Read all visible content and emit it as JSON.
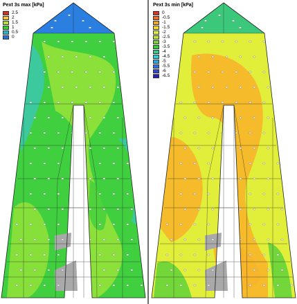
{
  "left_panel": {
    "title": "Pext 3s max [kPa]",
    "legend": [
      {
        "label": "2.5",
        "color": "#d7301f"
      },
      {
        "label": "2",
        "color": "#f5c141"
      },
      {
        "label": "1.5",
        "color": "#b7e034"
      },
      {
        "label": "1",
        "color": "#33cc33"
      },
      {
        "label": "0.5",
        "color": "#22b8cc"
      },
      {
        "label": "0",
        "color": "#2b6fd6"
      }
    ],
    "colors": {
      "base": "#3fcf3f",
      "light": "#8fe03a",
      "cyan": "#3cc8a8",
      "tip": "#2a7fe0"
    }
  },
  "right_panel": {
    "title": "Pext 3s min [kPa]",
    "legend": [
      {
        "label": "0",
        "color": "#e0301e"
      },
      {
        "label": "-0.5",
        "color": "#ef6a22"
      },
      {
        "label": "-1",
        "color": "#f7a41f"
      },
      {
        "label": "-1.5",
        "color": "#f7d630"
      },
      {
        "label": "-2",
        "color": "#e2ef3a"
      },
      {
        "label": "-2.5",
        "color": "#b7e339"
      },
      {
        "label": "-3",
        "color": "#72d63a"
      },
      {
        "label": "-3.5",
        "color": "#33cc33"
      },
      {
        "label": "-4",
        "color": "#2fcf8a"
      },
      {
        "label": "-4.5",
        "color": "#2ccfc9"
      },
      {
        "label": "-5",
        "color": "#27a9e8"
      },
      {
        "label": "-5.5",
        "color": "#2f6fe0"
      },
      {
        "label": "-6",
        "color": "#3344d6"
      },
      {
        "label": "-6.5",
        "color": "#2a1fb0"
      }
    ],
    "colors": {
      "base": "#e2ef3a",
      "orange": "#f7b52a",
      "green": "#5fd23a",
      "tip": "#3cc87a"
    }
  }
}
